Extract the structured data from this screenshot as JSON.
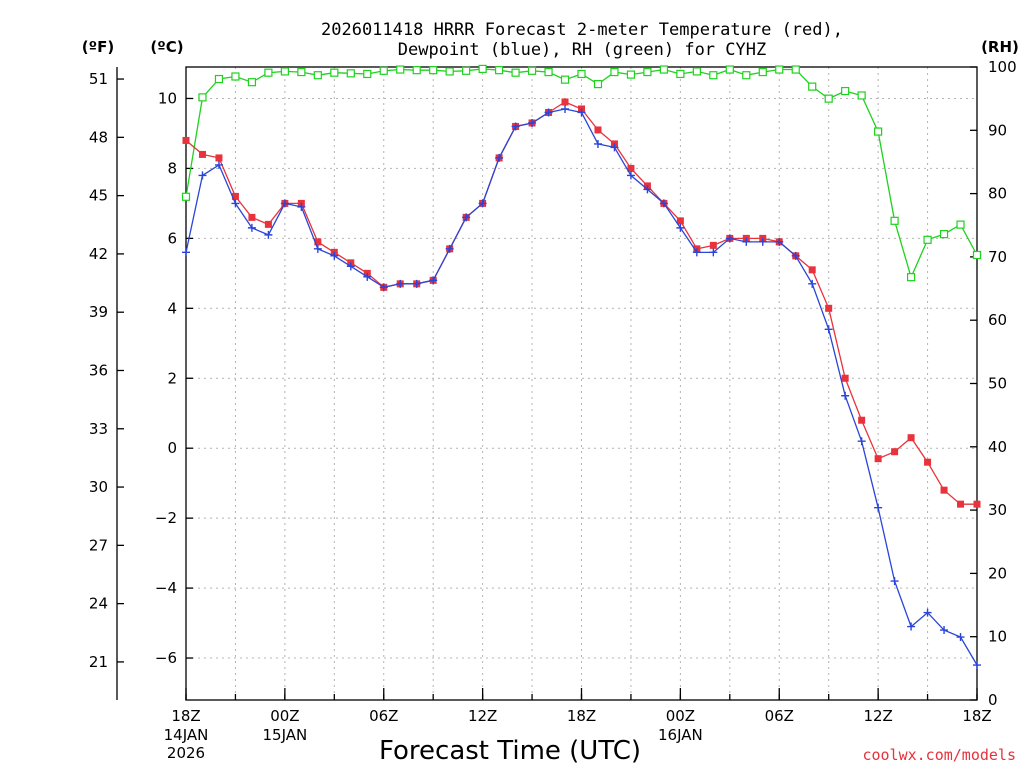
{
  "chart_data": {
    "type": "line",
    "title_line1": "2026011418 HRRR Forecast 2-meter Temperature (red),",
    "title_line2": "Dewpoint (blue), RH (green) for CYHZ",
    "xlabel": "Forecast Time (UTC)",
    "credit": "coolwx.com/models",
    "units": {
      "left_outer": "(ºF)",
      "left_inner": "(ºC)",
      "right": "(RH)"
    },
    "colors": {
      "temperature": "#e8323c",
      "dewpoint": "#2a45d8",
      "rh": "#1ed21e",
      "grid": "#b4b4b4"
    },
    "hours": [
      0,
      48
    ],
    "temp_c_range": [
      -7.2,
      10.9
    ],
    "rh_range": [
      0,
      100
    ],
    "f_ticks": [
      "21",
      "24",
      "27",
      "30",
      "33",
      "36",
      "39",
      "42",
      "45",
      "48",
      "51"
    ],
    "c_ticks": [
      "-6",
      "-4",
      "-2",
      "0",
      "2",
      "4",
      "6",
      "8",
      "10"
    ],
    "rh_ticks": [
      "0",
      "10",
      "20",
      "30",
      "40",
      "50",
      "60",
      "70",
      "80",
      "90",
      "100"
    ],
    "x_ticks": [
      {
        "hour": 0,
        "l1": "18Z",
        "l2": "14JAN",
        "l3": "2026"
      },
      {
        "hour": 6,
        "l1": "00Z",
        "l2": "15JAN",
        "l3": ""
      },
      {
        "hour": 12,
        "l1": "06Z",
        "l2": "",
        "l3": ""
      },
      {
        "hour": 18,
        "l1": "12Z",
        "l2": "",
        "l3": ""
      },
      {
        "hour": 24,
        "l1": "18Z",
        "l2": "",
        "l3": ""
      },
      {
        "hour": 30,
        "l1": "00Z",
        "l2": "16JAN",
        "l3": ""
      },
      {
        "hour": 36,
        "l1": "06Z",
        "l2": "",
        "l3": ""
      },
      {
        "hour": 42,
        "l1": "12Z",
        "l2": "",
        "l3": ""
      },
      {
        "hour": 48,
        "l1": "18Z",
        "l2": "",
        "l3": ""
      }
    ],
    "temperature": [
      8.8,
      8.4,
      8.3,
      7.2,
      6.6,
      6.4,
      7.0,
      7.0,
      5.9,
      5.6,
      5.3,
      5.0,
      4.6,
      4.7,
      4.7,
      4.8,
      5.7,
      6.6,
      7.0,
      8.3,
      9.2,
      9.3,
      9.6,
      9.9,
      9.7,
      9.1,
      8.7,
      8.0,
      7.5,
      7.0,
      6.5,
      5.7,
      5.8,
      6.0,
      6.0,
      6.0,
      5.9,
      5.5,
      5.1,
      4.0,
      2.0,
      0.8,
      -0.3,
      -0.1,
      0.3,
      -0.4,
      -1.2,
      -1.6,
      -1.6
    ],
    "dewpoint": [
      5.6,
      7.8,
      8.1,
      7.0,
      6.3,
      6.1,
      7.0,
      6.9,
      5.7,
      5.5,
      5.2,
      4.9,
      4.6,
      4.7,
      4.7,
      4.8,
      5.7,
      6.6,
      7.0,
      8.3,
      9.2,
      9.3,
      9.6,
      9.7,
      9.6,
      8.7,
      8.6,
      7.8,
      7.4,
      7.0,
      6.3,
      5.6,
      5.6,
      6.0,
      5.9,
      5.9,
      5.9,
      5.5,
      4.7,
      3.4,
      1.5,
      0.2,
      -1.7,
      -3.8,
      -5.1,
      -4.7,
      -5.2,
      -5.4,
      -6.2
    ],
    "rh": [
      79.5,
      95.2,
      98.1,
      98.5,
      97.6,
      99.1,
      99.3,
      99.2,
      98.7,
      99.1,
      99.0,
      98.9,
      99.4,
      99.6,
      99.5,
      99.5,
      99.3,
      99.4,
      99.7,
      99.5,
      99.1,
      99.4,
      99.2,
      98.0,
      98.9,
      97.3,
      99.2,
      98.8,
      99.2,
      99.6,
      98.9,
      99.3,
      98.7,
      99.6,
      98.7,
      99.2,
      99.6,
      99.6,
      96.9,
      95.0,
      96.2,
      95.5,
      89.8,
      75.7,
      66.8,
      72.7,
      73.6,
      75.1,
      70.3
    ]
  }
}
